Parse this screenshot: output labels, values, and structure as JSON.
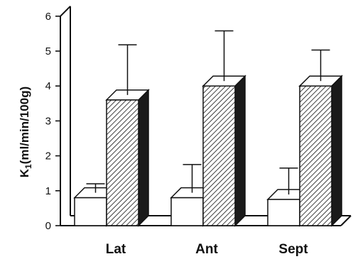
{
  "chart_data": {
    "type": "bar",
    "title": "",
    "xlabel": "",
    "ylabel_main": "K",
    "ylabel_sub": "1",
    "ylabel_rest": "(ml/min/100g)",
    "ylim": [
      0,
      6
    ],
    "yticks": [
      "0",
      "1",
      "2",
      "3",
      "4",
      "5",
      "6"
    ],
    "categories": [
      "Lat",
      "Ant",
      "Sept"
    ],
    "series": [
      {
        "fill": "white",
        "values": [
          0.8,
          0.8,
          0.75
        ],
        "errors_upper": [
          1.2,
          1.75,
          1.65
        ]
      },
      {
        "fill": "hatched",
        "values": [
          3.6,
          4.0,
          4.0
        ],
        "errors_upper": [
          5.18,
          5.58,
          5.03
        ]
      }
    ],
    "grid": false,
    "legend": "none"
  }
}
